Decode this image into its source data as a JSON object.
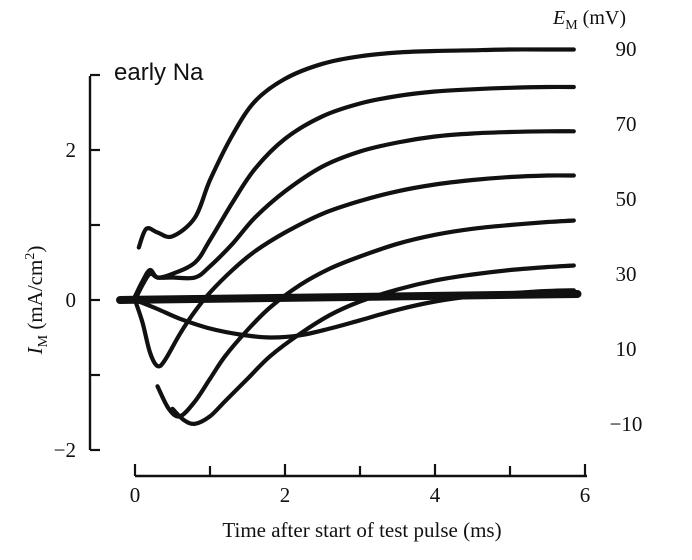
{
  "chart_data": {
    "type": "line",
    "annotation": "early Na",
    "xlabel": "Time after start of test pulse (ms)",
    "ylabel_main": "I",
    "ylabel_sub": "M",
    "ylabel_rest": " (mA/cm",
    "ylabel_sup": "2",
    "ylabel_close": ")",
    "legend_title_main": "E",
    "legend_title_sub": "M",
    "legend_title_rest": " (mV)",
    "xlim": [
      -0.3,
      6
    ],
    "ylim": [
      -2,
      3
    ],
    "x_ticks": [
      {
        "value": 0,
        "label": "0"
      },
      {
        "value": 2,
        "label": "2"
      },
      {
        "value": 4,
        "label": "4"
      },
      {
        "value": 6,
        "label": "6"
      }
    ],
    "x_minor_ticks": [
      1,
      3,
      5
    ],
    "y_ticks": [
      {
        "value": -2,
        "label": "−2"
      },
      {
        "value": -1,
        "label": ""
      },
      {
        "value": 0,
        "label": "0"
      },
      {
        "value": 1,
        "label": ""
      },
      {
        "value": 2,
        "label": "2"
      },
      {
        "value": 3,
        "label": ""
      }
    ],
    "baseline": {
      "x": [
        -0.2,
        5.9
      ],
      "y": [
        0,
        0.08
      ]
    },
    "series": [
      {
        "name": "90",
        "x": [
          0.05,
          0.15,
          0.3,
          0.5,
          0.8,
          1.0,
          1.3,
          1.6,
          2.0,
          2.5,
          3.0,
          3.5,
          4.0,
          4.5,
          5.0,
          5.5,
          5.85
        ],
        "y": [
          0.7,
          0.95,
          0.9,
          0.85,
          1.1,
          1.6,
          2.2,
          2.65,
          2.95,
          3.15,
          3.25,
          3.3,
          3.32,
          3.33,
          3.34,
          3.34,
          3.34
        ]
      },
      {
        "name": "70",
        "x": [
          0.0,
          0.1,
          0.2,
          0.3,
          0.5,
          0.8,
          1.0,
          1.3,
          1.6,
          2.0,
          2.5,
          3.0,
          3.5,
          4.0,
          4.5,
          5.0,
          5.5,
          5.85
        ],
        "y": [
          0.05,
          0.25,
          0.4,
          0.3,
          0.35,
          0.5,
          0.8,
          1.3,
          1.75,
          2.15,
          2.45,
          2.62,
          2.72,
          2.78,
          2.81,
          2.83,
          2.84,
          2.84
        ]
      },
      {
        "name": "50",
        "x": [
          0.0,
          0.1,
          0.2,
          0.3,
          0.5,
          0.8,
          1.0,
          1.3,
          1.6,
          2.0,
          2.5,
          3.0,
          3.5,
          4.0,
          4.5,
          5.0,
          5.5,
          5.85
        ],
        "y": [
          0.0,
          0.2,
          0.35,
          0.3,
          0.3,
          0.3,
          0.45,
          0.75,
          1.1,
          1.45,
          1.78,
          1.98,
          2.1,
          2.18,
          2.22,
          2.24,
          2.25,
          2.25
        ]
      },
      {
        "name": "30",
        "x": [
          0.0,
          0.1,
          0.2,
          0.3,
          0.4,
          0.6,
          0.8,
          1.0,
          1.3,
          1.6,
          2.0,
          2.5,
          3.0,
          3.5,
          4.0,
          4.5,
          5.0,
          5.5,
          5.85
        ],
        "y": [
          0.0,
          -0.3,
          -0.7,
          -0.88,
          -0.8,
          -0.45,
          -0.15,
          0.1,
          0.4,
          0.65,
          0.9,
          1.15,
          1.32,
          1.45,
          1.54,
          1.6,
          1.64,
          1.66,
          1.66
        ]
      },
      {
        "name": "10",
        "x": [
          0.3,
          0.45,
          0.6,
          0.8,
          1.0,
          1.2,
          1.5,
          1.8,
          2.2,
          2.6,
          3.0,
          3.5,
          4.0,
          4.5,
          5.0,
          5.5,
          5.85
        ],
        "y": [
          -1.15,
          -1.45,
          -1.55,
          -1.35,
          -1.05,
          -0.75,
          -0.4,
          -0.1,
          0.2,
          0.42,
          0.58,
          0.75,
          0.87,
          0.95,
          1.0,
          1.04,
          1.06
        ]
      },
      {
        "name": "-10",
        "x": [
          0.5,
          0.65,
          0.8,
          1.0,
          1.2,
          1.5,
          1.8,
          2.2,
          2.6,
          3.0,
          3.5,
          4.0,
          4.5,
          5.0,
          5.5,
          5.85
        ],
        "y": [
          -1.45,
          -1.6,
          -1.65,
          -1.55,
          -1.35,
          -1.05,
          -0.75,
          -0.45,
          -0.2,
          -0.02,
          0.14,
          0.26,
          0.34,
          0.4,
          0.44,
          0.46
        ]
      },
      {
        "name": "",
        "x": [
          0.05,
          0.3,
          0.6,
          1.0,
          1.4,
          1.8,
          2.2,
          2.6,
          3.0,
          3.5,
          4.0,
          4.5,
          5.0,
          5.5,
          5.85
        ],
        "y": [
          -0.02,
          -0.12,
          -0.25,
          -0.38,
          -0.46,
          -0.5,
          -0.47,
          -0.38,
          -0.27,
          -0.13,
          -0.02,
          0.05,
          0.09,
          0.12,
          0.13
        ]
      }
    ],
    "series_label_values": [
      90,
      70,
      50,
      30,
      10,
      -10
    ],
    "series_labels": [
      "90",
      "70",
      "50",
      "30",
      "10",
      "−10"
    ],
    "grid": false,
    "legend": "right"
  }
}
